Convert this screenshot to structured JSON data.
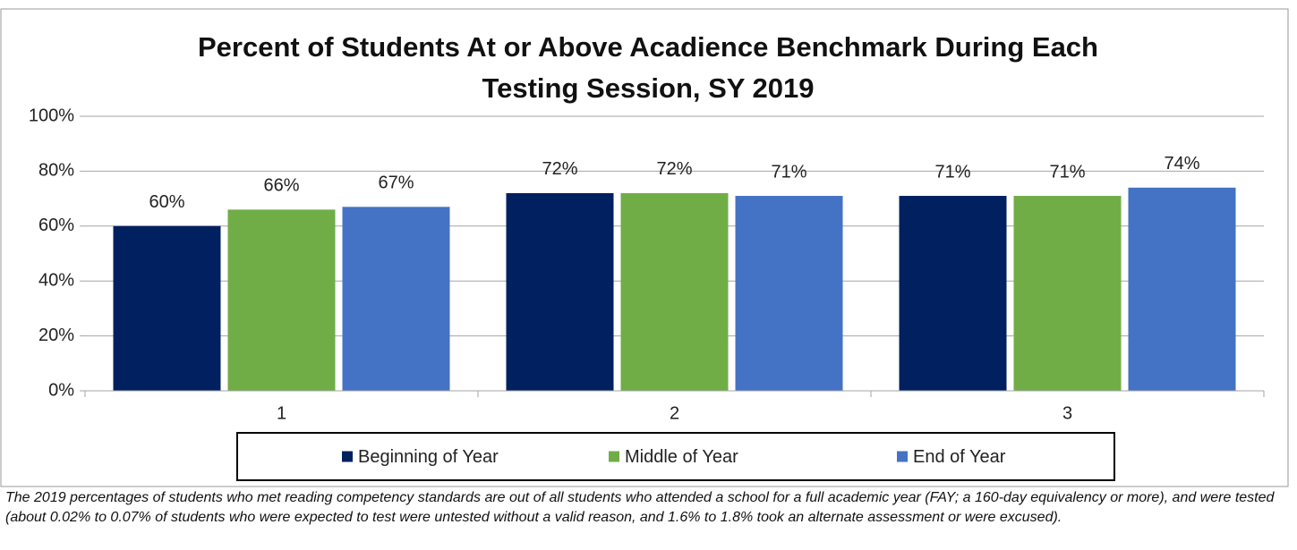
{
  "chart_data": {
    "type": "bar",
    "title": "Percent of Students At or Above Acadience Benchmark During Each Testing Session, SY 2019",
    "categories": [
      "1",
      "2",
      "3"
    ],
    "series": [
      {
        "name": "Beginning of Year",
        "color": "#002060",
        "values": [
          60,
          72,
          71
        ],
        "value_labels": [
          "60%",
          "72%",
          "71%"
        ]
      },
      {
        "name": "Middle of Year",
        "color": "#70ad47",
        "values": [
          66,
          72,
          71
        ],
        "value_labels": [
          "66%",
          "72%",
          "71%"
        ]
      },
      {
        "name": "End of Year",
        "color": "#4472c4",
        "values": [
          67,
          71,
          74
        ],
        "value_labels": [
          "67%",
          "71%",
          "74%"
        ]
      }
    ],
    "ylim": [
      0,
      100
    ],
    "yticks": [
      {
        "value": 0,
        "label": "0%"
      },
      {
        "value": 20,
        "label": "20%"
      },
      {
        "value": 40,
        "label": "40%"
      },
      {
        "value": 60,
        "label": "60%"
      },
      {
        "value": 80,
        "label": "80%"
      },
      {
        "value": 100,
        "label": "100%"
      }
    ],
    "grid": true,
    "legend": "bottom",
    "footnote": "The 2019 percentages of students who met reading competency standards are out of all students who attended a school for a full academic year (FAY; a 160-day equivalency or more), and were tested (about 0.02% to 0.07% of students who were expected to test were untested without a valid reason, and 1.6% to 1.8% took an alternate assessment or were excused)."
  }
}
